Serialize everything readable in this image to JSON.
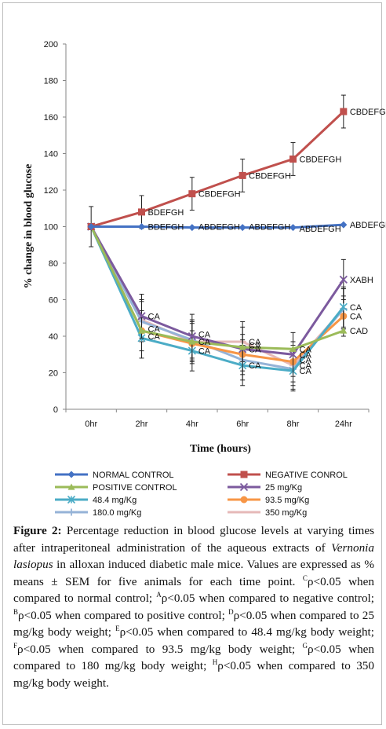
{
  "chart_data": {
    "type": "line",
    "ylabel": "% change in blood glucose",
    "xlabel": "Time (hours)",
    "categories": [
      "0hr",
      "2hr",
      "4hr",
      "6hr",
      "8hr",
      "24hr"
    ],
    "ylim": [
      0,
      200
    ],
    "yticks": [
      0,
      20,
      40,
      60,
      80,
      100,
      120,
      140,
      160,
      180,
      200
    ],
    "grid": false,
    "legend_position": "bottom",
    "series": [
      {
        "name": "NORMAL CONTROL",
        "color": "#4472c4",
        "marker": "diamond",
        "values": [
          100,
          100,
          99.5,
          99.5,
          99.5,
          101
        ],
        "err": [
          0,
          0,
          0,
          0,
          0,
          0
        ]
      },
      {
        "name": "NEGATIVE CONROL",
        "color": "#c0504d",
        "marker": "square",
        "values": [
          100,
          108,
          118,
          128,
          137,
          163
        ],
        "err": [
          11,
          9,
          9,
          9,
          9,
          9
        ]
      },
      {
        "name": "POSITIVE CONTROL",
        "color": "#9bbb59",
        "marker": "triangle",
        "values": [
          100,
          43,
          37,
          34,
          33,
          43
        ],
        "err": [
          0,
          0,
          0,
          0,
          0,
          0
        ]
      },
      {
        "name": "25 mg/Kg",
        "color": "#7c5a9e",
        "marker": "x",
        "values": [
          100,
          51,
          40,
          33,
          30,
          71
        ],
        "err": [
          0,
          12,
          12,
          12,
          12,
          11
        ]
      },
      {
        "name": "48.4 mg/Kg",
        "color": "#4bacc6",
        "marker": "asterisk",
        "values": [
          100,
          39,
          32,
          24,
          21,
          56
        ],
        "err": [
          0,
          11,
          11,
          11,
          11,
          11
        ]
      },
      {
        "name": "93.5 mg/Kg",
        "color": "#f79646",
        "marker": "circle",
        "values": [
          100,
          43,
          36,
          30,
          26,
          51
        ],
        "err": [
          0,
          11,
          11,
          11,
          11,
          11
        ]
      },
      {
        "name": "180.0 mg/Kg",
        "color": "#95b3d7",
        "marker": "plus",
        "values": [
          100,
          48,
          38,
          27,
          22,
          55
        ],
        "err": [
          0,
          11,
          11,
          11,
          11,
          11
        ]
      },
      {
        "name": "350 mg/Kg",
        "color": "#e6b9b8",
        "marker": "dash",
        "values": [
          100,
          49,
          37,
          37,
          24,
          55
        ],
        "err": [
          0,
          11,
          11,
          11,
          11,
          11
        ]
      }
    ],
    "annotations": [
      {
        "text": "BDEFGH",
        "x": "2hr",
        "y": 108
      },
      {
        "text": "CBDEFGH",
        "x": "4hr",
        "y": 118
      },
      {
        "text": "CBDEFGH",
        "x": "6hr",
        "y": 128
      },
      {
        "text": "CBDEFGH",
        "x": "8hr",
        "y": 137
      },
      {
        "text": "CBDEFGH",
        "x": "24hr",
        "y": 163
      },
      {
        "text": "BDEFGH",
        "x": "2hr",
        "y": 100
      },
      {
        "text": "ABDEFGH",
        "x": "4hr",
        "y": 100
      },
      {
        "text": "ABDEFGH",
        "x": "6hr",
        "y": 100
      },
      {
        "text": "ABDEFGH",
        "x": "8hr",
        "y": 99
      },
      {
        "text": "ABDEFGH",
        "x": "24hr",
        "y": 101
      },
      {
        "text": "CA",
        "x": "2hr",
        "y": 51
      },
      {
        "text": "CA",
        "x": "2hr",
        "y": 44
      },
      {
        "text": "CA",
        "x": "2hr",
        "y": 40
      },
      {
        "text": "CA",
        "x": "4hr",
        "y": 41
      },
      {
        "text": "CA",
        "x": "4hr",
        "y": 37
      },
      {
        "text": "CA",
        "x": "4hr",
        "y": 32
      },
      {
        "text": "CA",
        "x": "6hr",
        "y": 37
      },
      {
        "text": "CA",
        "x": "6hr",
        "y": 35
      },
      {
        "text": "CA",
        "x": "6hr",
        "y": 33
      },
      {
        "text": "CA",
        "x": "6hr",
        "y": 24
      },
      {
        "text": "CA",
        "x": "8hr",
        "y": 33
      },
      {
        "text": "CA",
        "x": "8hr",
        "y": 30
      },
      {
        "text": "CA",
        "x": "8hr",
        "y": 27
      },
      {
        "text": "CA",
        "x": "8hr",
        "y": 24
      },
      {
        "text": "CA",
        "x": "8hr",
        "y": 21
      },
      {
        "text": "XABH",
        "x": "24hr",
        "y": 71
      },
      {
        "text": "CA",
        "x": "24hr",
        "y": 56
      },
      {
        "text": "CA",
        "x": "24hr",
        "y": 51
      },
      {
        "text": "CAD",
        "x": "24hr",
        "y": 43
      }
    ]
  },
  "caption": {
    "label": "Figure 2:",
    "part1": " Percentage reduction in blood glucose levels at varying times after intraperitoneal administration of the aqueous extracts of ",
    "species": "Vernonia lasiopus",
    "part2": " in alloxan induced diabetic male mice. Values are expressed as % means ± SEM for five animals for each time point. ",
    "sC": "C",
    "tC": "ρ<0.05 when compared to normal control; ",
    "sA": "A",
    "tA": "ρ<0.05 when compared to negative control; ",
    "sB": "B",
    "tB": "ρ<0.05 when compared to positive control; ",
    "sD": "D",
    "tD": "ρ<0.05 when compared to 25 mg/kg body weight; ",
    "sE": "E",
    "tE": "ρ<0.05 when compared to 48.4 mg/kg body weight; ",
    "sF": "F",
    "tF": "ρ<0.05 when compared to 93.5 mg/kg body weight; ",
    "sG": "G",
    "tG": "ρ<0.05 when compared to 180 mg/kg body weight; ",
    "sH": "H",
    "tH": "ρ<0.05 when compared to 350 mg/kg body weight."
  }
}
